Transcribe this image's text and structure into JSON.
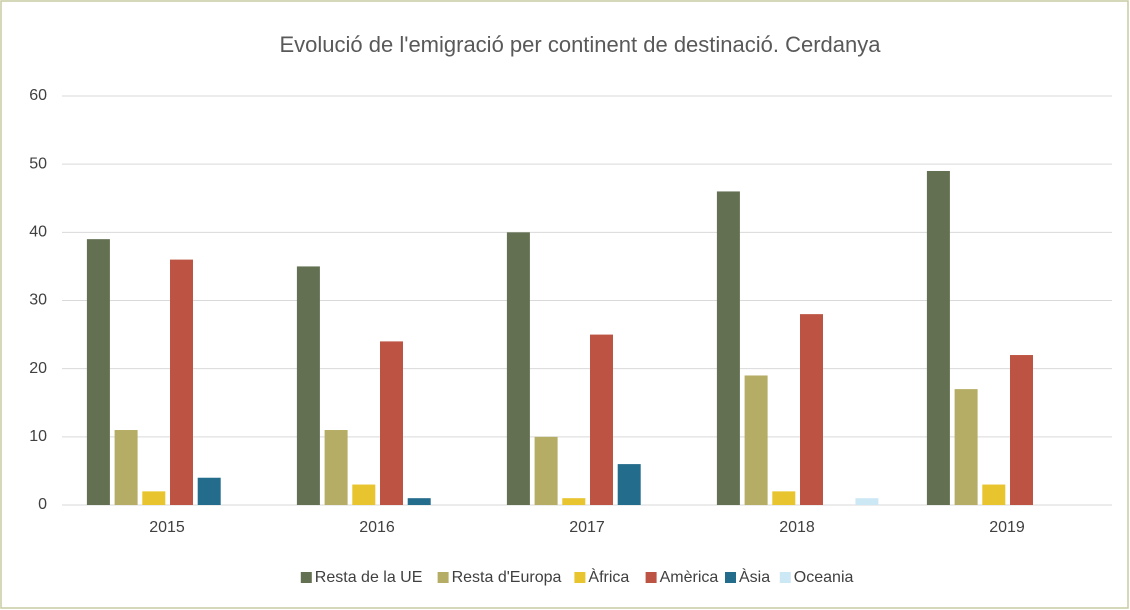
{
  "chart_data": {
    "type": "bar",
    "title": "Evolució de l'emigració per continent de destinació. Cerdanya",
    "categories": [
      "2015",
      "2016",
      "2017",
      "2018",
      "2019"
    ],
    "series": [
      {
        "name": "Resta de la UE",
        "color": "#637152",
        "values": [
          39,
          35,
          40,
          46,
          49
        ]
      },
      {
        "name": "Resta d'Europa",
        "color": "#b5ad65",
        "values": [
          11,
          11,
          10,
          19,
          17
        ]
      },
      {
        "name": "Àfrica",
        "color": "#e8c42e",
        "values": [
          2,
          3,
          1,
          2,
          3
        ]
      },
      {
        "name": "Amèrica",
        "color": "#bd5443",
        "values": [
          36,
          24,
          25,
          28,
          22
        ]
      },
      {
        "name": "Àsia",
        "color": "#236c8c",
        "values": [
          4,
          1,
          6,
          0,
          0
        ]
      },
      {
        "name": "Oceania",
        "color": "#cde8f5",
        "values": [
          0,
          0,
          0,
          1,
          0
        ]
      }
    ],
    "ylim": [
      0,
      60
    ],
    "yticks": [
      0,
      10,
      20,
      30,
      40,
      50,
      60
    ],
    "grid": true,
    "legend": "bottom"
  }
}
